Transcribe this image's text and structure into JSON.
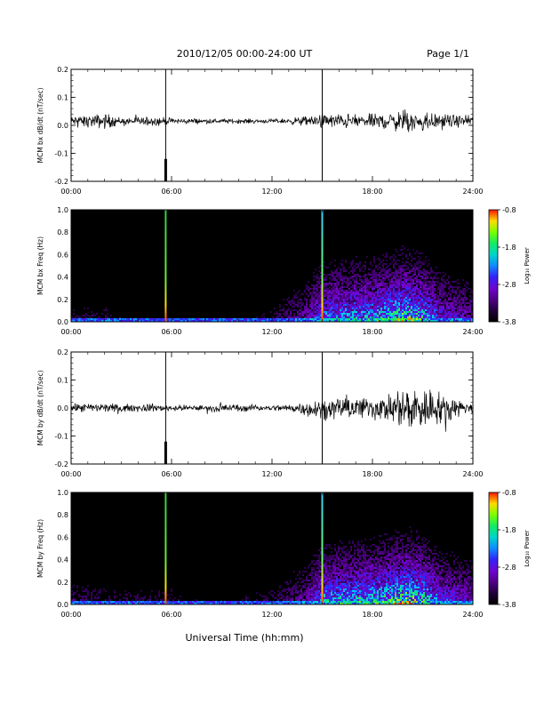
{
  "header": {
    "title": "2010/12/05  00:00-24:00 UT",
    "page": "Page 1/1"
  },
  "footer": {
    "xlabel": "Universal Time (hh:mm)"
  },
  "chart_data": [
    {
      "type": "line",
      "ylabel": "MCM bx dB/dt (nT/sec)",
      "xlim": [
        0,
        24
      ],
      "ylim": [
        -0.2,
        0.2
      ],
      "xticks": [
        "00:00",
        "06:00",
        "12:00",
        "18:00",
        "24:00"
      ],
      "yticks": [
        "-0.2",
        "-0.1",
        "0.0",
        "0.1",
        "0.2"
      ],
      "series_color": "#000000",
      "spikes_hours": [
        5.65,
        15.0
      ],
      "envelope": {
        "hours": [
          0,
          1,
          2,
          3,
          4,
          5,
          6,
          7,
          8,
          9,
          10,
          11,
          12,
          13,
          14,
          15,
          16,
          17,
          18,
          19,
          20,
          21,
          22,
          23,
          24
        ],
        "amplitude": [
          0.025,
          0.03,
          0.04,
          0.02,
          0.02,
          0.025,
          0.015,
          0.015,
          0.012,
          0.012,
          0.012,
          0.012,
          0.01,
          0.015,
          0.025,
          0.04,
          0.04,
          0.035,
          0.035,
          0.045,
          0.06,
          0.055,
          0.04,
          0.03,
          0.025
        ]
      },
      "baseline": 0.015
    },
    {
      "type": "heatmap",
      "ylabel": "MCM bx Freq (Hz)",
      "xlim": [
        0,
        24
      ],
      "ylim": [
        0.0,
        1.0
      ],
      "xticks": [
        "00:00",
        "06:00",
        "12:00",
        "18:00",
        "24:00"
      ],
      "yticks": [
        "0.0",
        "0.2",
        "0.4",
        "0.6",
        "0.8",
        "1.0"
      ],
      "colorbar": {
        "label": "Log₁₀ Power",
        "ticks": [
          "-0.8",
          "-1.8",
          "-2.8",
          "-3.8"
        ],
        "range": [
          -3.8,
          -0.8
        ]
      },
      "spikes_hours": [
        5.65,
        15.0
      ],
      "activity_hours": [
        0,
        2,
        4,
        6,
        8,
        10,
        12,
        14,
        15,
        16,
        18,
        19,
        20,
        21,
        22,
        24
      ],
      "activity_level": [
        0.15,
        0.15,
        0.1,
        0.1,
        0.05,
        0.08,
        0.15,
        0.3,
        0.55,
        0.6,
        0.65,
        0.75,
        0.85,
        0.7,
        0.45,
        0.3
      ]
    },
    {
      "type": "line",
      "ylabel": "MCM by dB/dt (nT/sec)",
      "xlim": [
        0,
        24
      ],
      "ylim": [
        -0.2,
        0.2
      ],
      "xticks": [
        "00:00",
        "06:00",
        "12:00",
        "18:00",
        "24:00"
      ],
      "yticks": [
        "-0.2",
        "-0.1",
        "0.0",
        "0.1",
        "0.2"
      ],
      "series_color": "#000000",
      "spikes_hours": [
        5.65,
        15.0
      ],
      "envelope": {
        "hours": [
          0,
          1,
          2,
          3,
          4,
          5,
          6,
          7,
          8,
          9,
          10,
          11,
          12,
          13,
          14,
          15,
          16,
          17,
          18,
          19,
          20,
          21,
          22,
          23,
          24
        ],
        "amplitude": [
          0.02,
          0.025,
          0.025,
          0.018,
          0.02,
          0.02,
          0.015,
          0.015,
          0.015,
          0.02,
          0.02,
          0.015,
          0.015,
          0.02,
          0.035,
          0.05,
          0.055,
          0.06,
          0.06,
          0.07,
          0.11,
          0.12,
          0.08,
          0.05,
          0.03
        ]
      },
      "baseline": 0.0
    },
    {
      "type": "heatmap",
      "ylabel": "MCM by Freq (Hz)",
      "xlim": [
        0,
        24
      ],
      "ylim": [
        0.0,
        1.0
      ],
      "xticks": [
        "00:00",
        "06:00",
        "12:00",
        "18:00",
        "24:00"
      ],
      "yticks": [
        "0.0",
        "0.2",
        "0.4",
        "0.6",
        "0.8",
        "1.0"
      ],
      "colorbar": {
        "label": "Log₁₀ Power",
        "ticks": [
          "-0.8",
          "-1.8",
          "-2.8",
          "-3.8"
        ],
        "range": [
          -3.8,
          -0.8
        ]
      },
      "spikes_hours": [
        5.65,
        15.0
      ],
      "activity_hours": [
        0,
        2,
        4,
        6,
        8,
        10,
        12,
        14,
        15,
        16,
        18,
        19,
        20,
        21,
        22,
        24
      ],
      "activity_level": [
        0.2,
        0.15,
        0.15,
        0.15,
        0.1,
        0.12,
        0.15,
        0.3,
        0.6,
        0.65,
        0.7,
        0.8,
        0.9,
        0.75,
        0.5,
        0.35
      ]
    }
  ]
}
